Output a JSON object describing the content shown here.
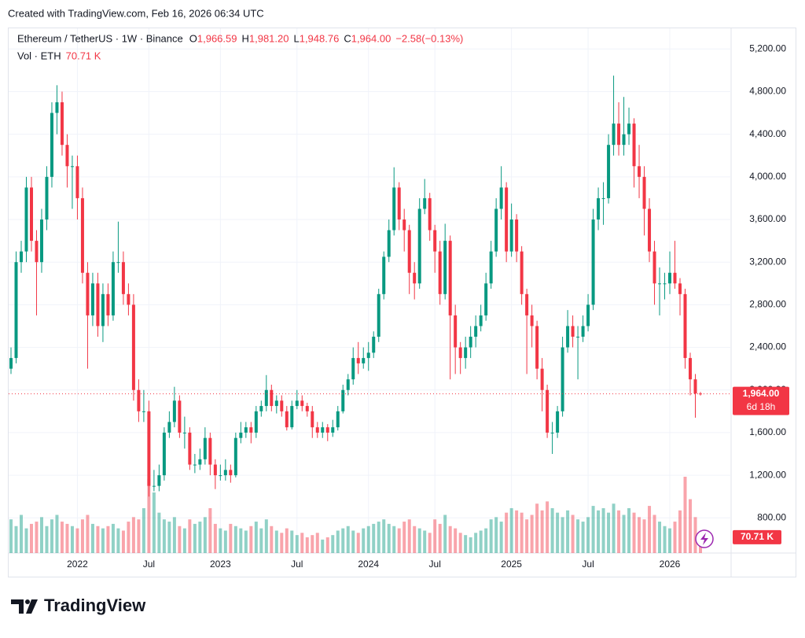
{
  "header": "Created with TradingView.com, Feb 16, 2026 06:34 UTC",
  "brand": "TradingView",
  "chart_data": {
    "type": "candlestick",
    "title": "Ethereum / TetherUS · 1W · Binance",
    "legend_labels": {
      "open": "O",
      "high": "H",
      "low": "L",
      "close": "C"
    },
    "last": {
      "open": {
        "value": 1966.59,
        "label": "1,966.59"
      },
      "high": {
        "value": 1981.2,
        "label": "1,981.20"
      },
      "low": {
        "value": 1948.76,
        "label": "1,948.76"
      },
      "close": {
        "value": 1964,
        "label": "1,964.00"
      },
      "change": {
        "value": -2.58,
        "label": "−2.58"
      },
      "change_pct": {
        "value": -0.13,
        "label": "(−0.13%)"
      }
    },
    "volume_title": "Vol · ETH",
    "volume_last": {
      "value": 70.71,
      "label": "70.71 K"
    },
    "price_tag": {
      "value": 1964,
      "label": "1,964.00"
    },
    "countdown": "6d 18h",
    "up_color": "#089981",
    "down_color": "#f23645",
    "open": [
      2200,
      2300,
      3200,
      3300,
      3900,
      3400,
      3200,
      3600,
      4000,
      4600,
      4700,
      4300,
      4100,
      4100,
      3800,
      3100,
      2700,
      3000,
      2600,
      2900,
      2700,
      3200,
      3200,
      2900,
      2800,
      2000,
      1800,
      1800,
      1100,
      1100,
      1200,
      1600,
      1700,
      1900,
      1600,
      1600,
      1300,
      1300,
      1350,
      1550,
      1300,
      1200,
      1200,
      1250,
      1200,
      1550,
      1600,
      1650,
      1600,
      1800,
      1850,
      2000,
      1850,
      1900,
      1800,
      1650,
      1850,
      1900,
      1850,
      1800,
      1650,
      1600,
      1650,
      1600,
      1650,
      1800,
      2000,
      2100,
      2300,
      2250,
      2300,
      2350,
      2500,
      2900,
      3250,
      3500,
      3900,
      3600,
      3500,
      3100,
      3000,
      3700,
      3800,
      3500,
      3300,
      2900,
      3400,
      2700,
      2400,
      2300,
      2400,
      2500,
      2600,
      2700,
      3000,
      3300,
      3700,
      3900,
      3300,
      3600,
      3300,
      2900,
      2700,
      2600,
      2200,
      2000,
      1600,
      1600,
      1800,
      2400,
      2600,
      2500,
      2500,
      2600,
      2800,
      3600,
      3800,
      3800,
      4300,
      4500,
      4300,
      4400,
      4500,
      4100,
      4000,
      3700,
      3300,
      3000,
      3000,
      3000,
      3100,
      3000,
      2900,
      2300,
      2100,
      1966.59
    ],
    "high": [
      2400,
      3300,
      3400,
      4000,
      4000,
      3500,
      3700,
      4100,
      4700,
      4860,
      4800,
      4400,
      4200,
      4200,
      3900,
      3200,
      3100,
      3100,
      3000,
      3000,
      3300,
      3580,
      3300,
      3000,
      2900,
      2100,
      2000,
      1900,
      1250,
      1300,
      1650,
      1800,
      2030,
      1950,
      1750,
      1650,
      1400,
      1450,
      1650,
      1600,
      1350,
      1300,
      1350,
      1300,
      1600,
      1700,
      1700,
      1700,
      1850,
      1900,
      2140,
      2050,
      1950,
      1950,
      1850,
      1900,
      2000,
      1950,
      1880,
      1850,
      1700,
      1700,
      1680,
      1720,
      1850,
      2050,
      2150,
      2400,
      2450,
      2400,
      2450,
      2550,
      2950,
      3300,
      3600,
      4090,
      3950,
      3700,
      3550,
      3200,
      3800,
      3980,
      3850,
      3550,
      3400,
      3560,
      3450,
      2800,
      2450,
      2500,
      2600,
      2700,
      2800,
      3100,
      3400,
      3800,
      4100,
      3950,
      3750,
      3650,
      3350,
      2950,
      2800,
      2650,
      2300,
      2050,
      1700,
      1850,
      2500,
      2750,
      2700,
      2600,
      2700,
      2900,
      3700,
      3900,
      3950,
      4400,
      4950,
      4700,
      4750,
      4650,
      4550,
      4300,
      4100,
      3800,
      3400,
      3150,
      3100,
      3300,
      3400,
      3050,
      2950,
      2350,
      2150,
      1981.2
    ],
    "low": [
      2150,
      2250,
      3100,
      3200,
      3300,
      2700,
      3100,
      3500,
      3900,
      4400,
      4200,
      3900,
      3700,
      3600,
      3000,
      2200,
      2600,
      2500,
      2450,
      2600,
      2650,
      3100,
      2800,
      2700,
      1900,
      1700,
      1700,
      1000,
      1050,
      1050,
      1150,
      1550,
      1650,
      1550,
      1450,
      1250,
      1220,
      1250,
      1300,
      1200,
      1070,
      1150,
      1150,
      1130,
      1180,
      1500,
      1550,
      1500,
      1550,
      1750,
      1800,
      1800,
      1780,
      1750,
      1620,
      1630,
      1820,
      1800,
      1750,
      1550,
      1550,
      1550,
      1520,
      1560,
      1620,
      1780,
      1950,
      2050,
      2150,
      2200,
      2180,
      2300,
      2450,
      2850,
      3200,
      3450,
      3500,
      3300,
      2900,
      2850,
      2950,
      3650,
      3400,
      3100,
      2800,
      2850,
      2100,
      2150,
      2150,
      2200,
      2300,
      2400,
      2550,
      2650,
      2950,
      3250,
      3600,
      3200,
      3250,
      3200,
      2800,
      2150,
      2400,
      2100,
      1800,
      1550,
      1400,
      1550,
      1750,
      2350,
      2400,
      2100,
      2450,
      2550,
      2750,
      3500,
      3550,
      3750,
      4200,
      4200,
      4200,
      4300,
      3900,
      3800,
      3450,
      3200,
      2800,
      2700,
      2850,
      2900,
      2950,
      2700,
      2200,
      1950,
      1740,
      1948.76
    ],
    "close": [
      2300,
      3200,
      3300,
      3900,
      3400,
      3200,
      3600,
      4000,
      4600,
      4700,
      4300,
      4100,
      4100,
      3800,
      3100,
      2700,
      3000,
      2600,
      2900,
      2700,
      3200,
      3200,
      2900,
      2800,
      2000,
      1800,
      1800,
      1100,
      1100,
      1200,
      1600,
      1700,
      1900,
      1600,
      1600,
      1300,
      1300,
      1350,
      1550,
      1300,
      1200,
      1200,
      1250,
      1200,
      1550,
      1600,
      1650,
      1600,
      1800,
      1850,
      2000,
      1850,
      1900,
      1800,
      1650,
      1850,
      1900,
      1850,
      1800,
      1650,
      1600,
      1650,
      1600,
      1650,
      1800,
      2000,
      2100,
      2300,
      2250,
      2300,
      2350,
      2500,
      2900,
      3250,
      3500,
      3900,
      3600,
      3500,
      3100,
      3000,
      3700,
      3800,
      3500,
      3300,
      2900,
      3400,
      2700,
      2400,
      2300,
      2400,
      2500,
      2600,
      2700,
      3000,
      3300,
      3700,
      3900,
      3300,
      3600,
      3300,
      2900,
      2700,
      2600,
      2200,
      2000,
      1600,
      1600,
      1800,
      2400,
      2600,
      2500,
      2500,
      2600,
      2800,
      3600,
      3800,
      3800,
      4300,
      4500,
      4300,
      4400,
      4500,
      4100,
      4000,
      3700,
      3300,
      3000,
      3000,
      3000,
      3100,
      3000,
      2900,
      2300,
      2100,
      1966.58,
      1964
    ],
    "volume": [
      150,
      120,
      170,
      110,
      130,
      140,
      160,
      120,
      150,
      170,
      140,
      130,
      120,
      110,
      150,
      170,
      130,
      120,
      110,
      120,
      130,
      110,
      100,
      140,
      160,
      150,
      200,
      330,
      270,
      180,
      150,
      140,
      160,
      120,
      110,
      150,
      130,
      140,
      160,
      200,
      130,
      110,
      100,
      130,
      120,
      110,
      100,
      120,
      140,
      110,
      150,
      120,
      100,
      90,
      110,
      100,
      80,
      90,
      70,
      80,
      90,
      60,
      70,
      80,
      100,
      110,
      120,
      100,
      90,
      110,
      120,
      130,
      140,
      150,
      130,
      120,
      110,
      140,
      150,
      120,
      110,
      100,
      90,
      150,
      130,
      170,
      120,
      110,
      90,
      80,
      70,
      90,
      100,
      110,
      150,
      160,
      140,
      180,
      200,
      190,
      180,
      150,
      170,
      220,
      190,
      230,
      200,
      180,
      160,
      190,
      170,
      150,
      140,
      160,
      210,
      190,
      200,
      180,
      220,
      190,
      170,
      200,
      180,
      160,
      150,
      210,
      170,
      140,
      120,
      110,
      140,
      190,
      340,
      240,
      160,
      70.71
    ],
    "ylim": [
      470,
      5394
    ],
    "yticks": [
      {
        "value": 800,
        "label": "800.00"
      },
      {
        "value": 1200,
        "label": "1,200.00"
      },
      {
        "value": 1600,
        "label": "1,600.00"
      },
      {
        "value": 2000,
        "label": "2,000.00"
      },
      {
        "value": 2400,
        "label": "2,400.00"
      },
      {
        "value": 2800,
        "label": "2,800.00"
      },
      {
        "value": 3200,
        "label": "3,200.00"
      },
      {
        "value": 3600,
        "label": "3,600.00"
      },
      {
        "value": 4000,
        "label": "4,000.00"
      },
      {
        "value": 4400,
        "label": "4,400.00"
      },
      {
        "value": 4800,
        "label": "4,800.00"
      },
      {
        "value": 5200,
        "label": "5,200.00"
      }
    ],
    "xticks": [
      {
        "value": 13,
        "label": "2022"
      },
      {
        "value": 27,
        "label": "Jul"
      },
      {
        "value": 41,
        "label": "2023"
      },
      {
        "value": 56,
        "label": "Jul"
      },
      {
        "value": 70,
        "label": "2024"
      },
      {
        "value": 83,
        "label": "Jul"
      },
      {
        "value": 98,
        "label": "2025"
      },
      {
        "value": 113,
        "label": "Jul"
      },
      {
        "value": 129,
        "label": "2026"
      }
    ],
    "grid": true
  }
}
